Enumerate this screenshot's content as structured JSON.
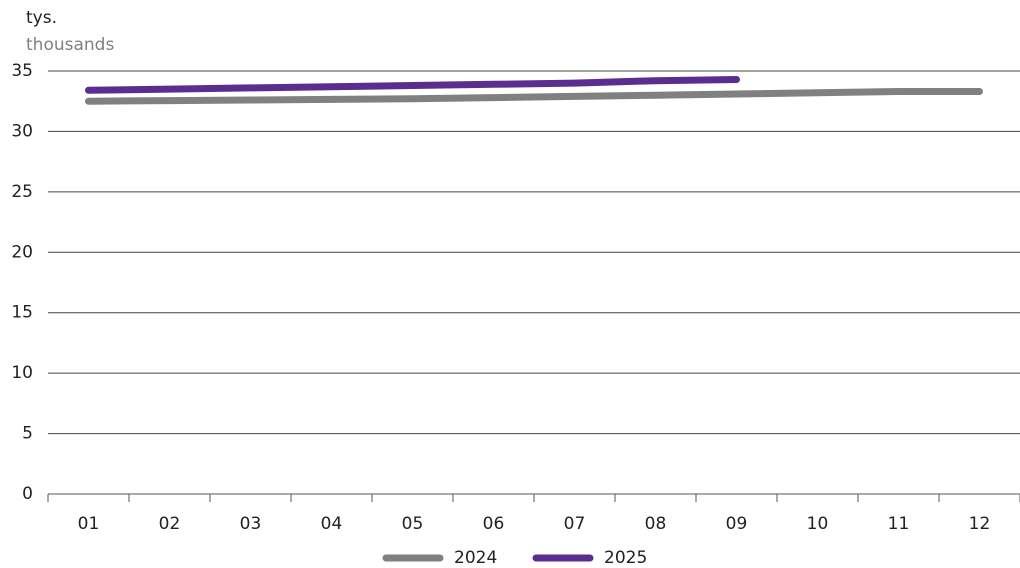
{
  "chart_data": {
    "type": "line",
    "unit_label": "tys.",
    "unit_label_secondary": "thousands",
    "categories": [
      "01",
      "02",
      "03",
      "04",
      "05",
      "06",
      "07",
      "08",
      "09",
      "10",
      "11",
      "12"
    ],
    "series": [
      {
        "name": "2024",
        "color": "#808080",
        "values": [
          32.5,
          32.55,
          32.6,
          32.65,
          32.7,
          32.8,
          32.9,
          33.0,
          33.1,
          33.2,
          33.3,
          33.3
        ]
      },
      {
        "name": "2025",
        "color": "#5b2d91",
        "values": [
          33.4,
          33.5,
          33.6,
          33.7,
          33.8,
          33.9,
          34.0,
          34.2,
          34.3,
          null,
          null,
          null
        ]
      }
    ],
    "ylim": [
      0,
      35
    ],
    "yticks": [
      0,
      5,
      10,
      15,
      20,
      25,
      30,
      35
    ],
    "grid": true
  }
}
